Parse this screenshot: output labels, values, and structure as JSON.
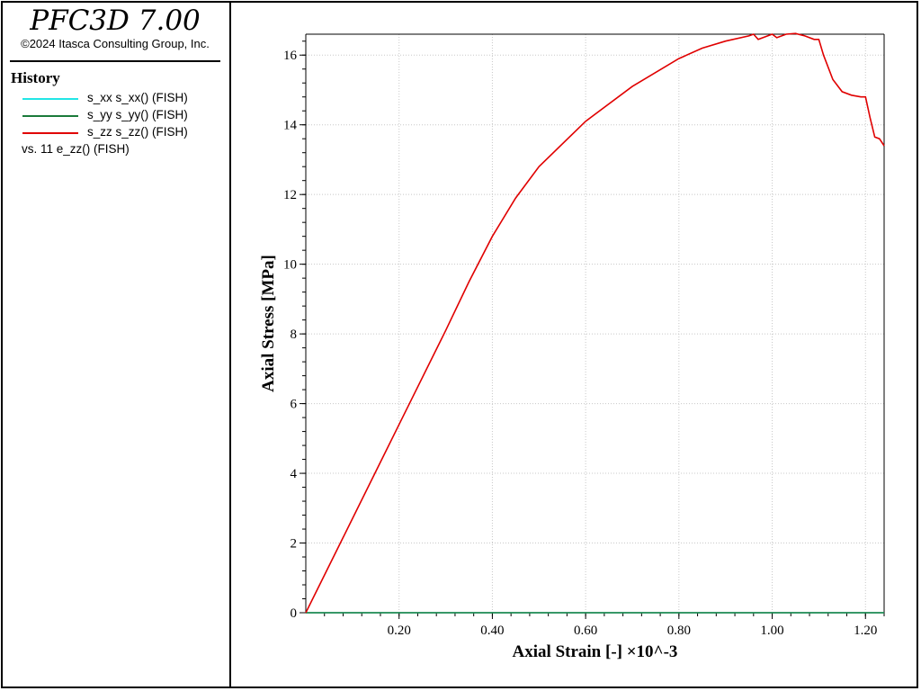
{
  "app": {
    "title": "PFC3D 7.00",
    "copyright": "©2024 Itasca Consulting Group, Inc."
  },
  "history": {
    "title": "History",
    "items": [
      {
        "label": "s_xx s_xx() (FISH)",
        "color": "#22e6e6",
        "icon": "legend-line"
      },
      {
        "label": "s_yy s_yy() (FISH)",
        "color": "#1a7a3a",
        "icon": "legend-line"
      },
      {
        "label": "s_zz s_zz() (FISH)",
        "color": "#e00000",
        "icon": "legend-line"
      }
    ],
    "vs_label": "vs. 11 e_zz() (FISH)"
  },
  "chart_data": {
    "type": "line",
    "xlabel": "Axial Strain [-] ×10^-3",
    "ylabel": "Axial Stress [MPa]",
    "xlim": [
      0,
      1.24
    ],
    "ylim": [
      0,
      16.6
    ],
    "x_ticks": [
      0.2,
      0.4,
      0.6,
      0.8,
      1.0,
      1.2
    ],
    "x_tick_labels": [
      "0.20",
      "0.40",
      "0.60",
      "0.80",
      "1.00",
      "1.20"
    ],
    "y_ticks": [
      0,
      2,
      4,
      6,
      8,
      10,
      12,
      14,
      16
    ],
    "y_tick_labels": [
      "0",
      "2",
      "4",
      "6",
      "8",
      "10",
      "12",
      "14",
      "16"
    ],
    "grid": true,
    "series": [
      {
        "name": "s_xx s_xx() (FISH)",
        "color": "#22e6e6",
        "x": [
          0,
          1.24
        ],
        "y": [
          0,
          0
        ]
      },
      {
        "name": "s_yy s_yy() (FISH)",
        "color": "#1a7a3a",
        "x": [
          0,
          1.24
        ],
        "y": [
          0,
          0
        ]
      },
      {
        "name": "s_zz s_zz() (FISH)",
        "color": "#e00000",
        "x": [
          0,
          0.1,
          0.2,
          0.3,
          0.35,
          0.4,
          0.45,
          0.5,
          0.6,
          0.7,
          0.8,
          0.85,
          0.9,
          0.95,
          0.96,
          0.97,
          1.0,
          1.01,
          1.03,
          1.05,
          1.07,
          1.09,
          1.1,
          1.11,
          1.13,
          1.15,
          1.17,
          1.19,
          1.2,
          1.21,
          1.22,
          1.23,
          1.24
        ],
        "y": [
          0,
          2.7,
          5.4,
          8.1,
          9.5,
          10.8,
          11.9,
          12.8,
          14.1,
          15.1,
          15.9,
          16.2,
          16.4,
          16.55,
          16.6,
          16.45,
          16.6,
          16.5,
          16.6,
          16.62,
          16.55,
          16.45,
          16.45,
          16.0,
          15.3,
          14.95,
          14.85,
          14.8,
          14.8,
          14.2,
          13.65,
          13.6,
          13.4
        ]
      }
    ]
  }
}
